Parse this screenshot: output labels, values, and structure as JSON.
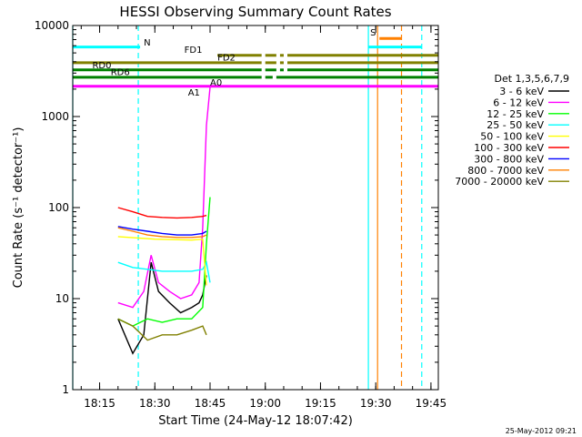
{
  "chart_data": {
    "type": "line",
    "title": "HESSI Observing Summary Count Rates",
    "xlabel": "Start Time (24-May-12 18:07:42)",
    "ylabel": "Count Rate (s⁻¹ detector⁻¹)",
    "yscale": "log",
    "ylim": [
      1,
      10000
    ],
    "xlim": [
      "18:07:42",
      "19:47:00"
    ],
    "x_ticks": [
      "18:15",
      "18:30",
      "18:45",
      "19:00",
      "19:15",
      "19:30",
      "19:45"
    ],
    "y_ticks": [
      "1",
      "10",
      "100",
      "1000",
      "10000"
    ],
    "timestamp": "25-May-2012 09:21",
    "legend_title": "Det 1,3,5,6,7,9",
    "legend_placement": "right",
    "series": [
      {
        "name": "3 - 6 keV",
        "color": "#000000",
        "x": [
          "18:20:00",
          "18:24:00",
          "18:27:00",
          "18:29:00",
          "18:31:00",
          "18:34:00",
          "18:37:00",
          "18:40:00",
          "18:42:00",
          "18:43:00",
          "18:44:00"
        ],
        "y": [
          6,
          2.5,
          4,
          25,
          12,
          9,
          7,
          8,
          9,
          11,
          18
        ]
      },
      {
        "name": "6 - 12 keV",
        "color": "#ff00ff",
        "x": [
          "18:20:00",
          "18:24:00",
          "18:27:00",
          "18:29:00",
          "18:31:00",
          "18:34:00",
          "18:37:00",
          "18:40:00",
          "18:42:00",
          "18:43:00",
          "18:44:00",
          "18:45:00"
        ],
        "y": [
          9,
          8,
          12,
          30,
          15,
          12,
          10,
          11,
          15,
          60,
          800,
          2100
        ]
      },
      {
        "name": "12 - 25 keV",
        "color": "#00ff00",
        "x": [
          "18:20:00",
          "18:24:00",
          "18:28:00",
          "18:32:00",
          "18:36:00",
          "18:40:00",
          "18:43:00",
          "18:44:00",
          "18:45:00"
        ],
        "y": [
          6,
          5,
          6,
          5.5,
          6,
          6,
          8,
          40,
          130
        ]
      },
      {
        "name": "25 - 50 keV",
        "color": "#00ffff",
        "x": [
          "18:20:00",
          "18:24:00",
          "18:28:00",
          "18:32:00",
          "18:36:00",
          "18:40:00",
          "18:43:00",
          "18:44:00",
          "18:45:00"
        ],
        "y": [
          25,
          22,
          21,
          20,
          20,
          20,
          21,
          25,
          15
        ]
      },
      {
        "name": "50 - 100 keV",
        "color": "#ffff00",
        "x": [
          "18:20:00",
          "18:30:00",
          "18:40:00",
          "18:43:00",
          "18:44:00"
        ],
        "y": [
          48,
          45,
          44,
          45,
          14
        ]
      },
      {
        "name": "100 - 300 keV",
        "color": "#ff0000",
        "x": [
          "18:20:00",
          "18:24:00",
          "18:28:00",
          "18:32:00",
          "18:36:00",
          "18:40:00",
          "18:43:00",
          "18:44:00"
        ],
        "y": [
          100,
          90,
          80,
          78,
          77,
          78,
          80,
          82
        ]
      },
      {
        "name": "300 - 800 keV",
        "color": "#0000ff",
        "x": [
          "18:20:00",
          "18:24:00",
          "18:28:00",
          "18:32:00",
          "18:36:00",
          "18:40:00",
          "18:43:00",
          "18:44:00"
        ],
        "y": [
          62,
          58,
          55,
          52,
          50,
          50,
          52,
          55
        ]
      },
      {
        "name": "800 - 7000 keV",
        "color": "#ff8000",
        "x": [
          "18:20:00",
          "18:24:00",
          "18:28:00",
          "18:32:00",
          "18:36:00",
          "18:40:00",
          "18:43:00",
          "18:44:00"
        ],
        "y": [
          60,
          55,
          50,
          48,
          47,
          47,
          48,
          50
        ]
      },
      {
        "name": "7000 - 20000 keV",
        "color": "#808000",
        "x": [
          "18:20:00",
          "18:24:00",
          "18:28:00",
          "18:32:00",
          "18:36:00",
          "18:40:00",
          "18:43:00",
          "18:44:00"
        ],
        "y": [
          6,
          5,
          3.5,
          4,
          4,
          4.5,
          5,
          4
        ]
      }
    ],
    "flag_bars": [
      {
        "label": "N",
        "color": "#00ffff",
        "y": 5800,
        "segments": [
          [
            "18:07:42",
            "18:26:00"
          ],
          [
            "19:28:00",
            "19:42:30"
          ]
        ]
      },
      {
        "label": "S",
        "color": "#ff8000",
        "y": 7200,
        "segments": [
          [
            "19:31:00",
            "19:37:00"
          ]
        ]
      },
      {
        "label": "FD1",
        "color": "#808000",
        "y": 4700,
        "segments": [
          [
            "18:47:00",
            "18:59:00"
          ],
          [
            "19:00:00",
            "19:03:00"
          ],
          [
            "19:04:00",
            "19:05:00"
          ],
          [
            "19:06:00",
            "19:47:00"
          ]
        ]
      },
      {
        "label": "FD2",
        "color": "#808000",
        "y": 3900,
        "segments": [
          [
            "18:07:42",
            "18:59:00"
          ],
          [
            "19:00:00",
            "19:03:00"
          ],
          [
            "19:04:00",
            "19:05:00"
          ],
          [
            "19:06:00",
            "19:47:00"
          ]
        ]
      },
      {
        "label": "RD0",
        "color": "#008000",
        "y": 3250,
        "segments": [
          [
            "18:07:42",
            "18:59:00"
          ],
          [
            "19:00:00",
            "19:03:00"
          ],
          [
            "19:04:00",
            "19:05:00"
          ],
          [
            "19:06:00",
            "19:47:00"
          ]
        ]
      },
      {
        "label": "RD6",
        "color": "#008000",
        "y": 2700,
        "segments": [
          [
            "18:07:42",
            "18:59:00"
          ],
          [
            "19:00:00",
            "19:02:00"
          ],
          [
            "19:03:00",
            "19:47:00"
          ]
        ]
      },
      {
        "label": "A1",
        "color": "#ff00ff",
        "y": 2150,
        "segments": [
          [
            "18:07:42",
            "19:47:00"
          ]
        ]
      }
    ],
    "flag_labels": [
      {
        "label": "N",
        "x": "18:27:00",
        "y": 6000,
        "color": "#00ffff"
      },
      {
        "label": "S",
        "x": "19:28:30",
        "y": 7800,
        "color": "#ff8000"
      },
      {
        "label": "FD1",
        "x": "18:38:00",
        "y": 5000,
        "color": "#808000"
      },
      {
        "label": "FD2",
        "x": "18:47:00",
        "y": 4100,
        "color": "#808000"
      },
      {
        "label": "RD0",
        "x": "18:13:00",
        "y": 3400,
        "color": "#008000"
      },
      {
        "label": "RD6",
        "x": "18:18:00",
        "y": 2850,
        "color": "#008000"
      },
      {
        "label": "A1",
        "x": "18:39:00",
        "y": 1700,
        "color": "#ff00ff"
      },
      {
        "label": "A0",
        "x": "18:45:00",
        "y": 2200,
        "color": "#ff00ff"
      }
    ],
    "vertical_lines": [
      {
        "x": "18:07:42",
        "color": "#00ffff",
        "style": "solid"
      },
      {
        "x": "18:25:30",
        "color": "#00ffff",
        "style": "dashed"
      },
      {
        "x": "19:28:00",
        "color": "#00ffff",
        "style": "solid"
      },
      {
        "x": "19:30:30",
        "color": "#ff8000",
        "style": "solid"
      },
      {
        "x": "19:37:00",
        "color": "#ff8000",
        "style": "dashed"
      },
      {
        "x": "19:42:30",
        "color": "#00ffff",
        "style": "dashed"
      }
    ]
  }
}
